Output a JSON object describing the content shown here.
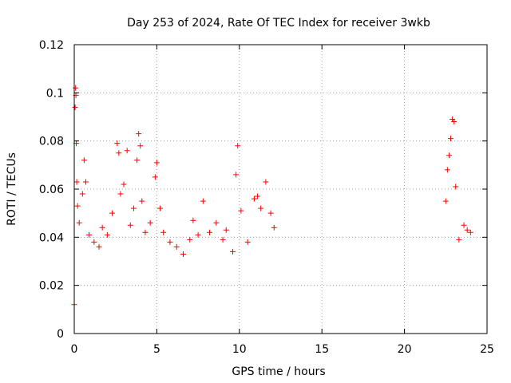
{
  "chart_data": {
    "type": "scatter",
    "title": "Day 253 of 2024, Rate Of TEC Index for receiver 3wkb",
    "xlabel": "GPS time / hours",
    "ylabel": "ROTI / TECUs",
    "xlim": [
      0,
      25
    ],
    "ylim": [
      0,
      0.12
    ],
    "xticks": [
      "0",
      "5",
      "10",
      "15",
      "20",
      "25"
    ],
    "yticks": [
      "0",
      "0.02",
      "0.04",
      "0.06",
      "0.08",
      "0.1",
      "0.12"
    ],
    "grid": true,
    "marker": "+",
    "series_color": "#ff0000",
    "series": [
      {
        "points": [
          [
            0.0,
            0.012
          ],
          [
            0.05,
            0.094
          ],
          [
            0.08,
            0.102
          ],
          [
            0.1,
            0.099
          ],
          [
            0.12,
            0.079
          ],
          [
            0.15,
            0.063
          ],
          [
            0.2,
            0.053
          ],
          [
            0.3,
            0.046
          ],
          [
            0.5,
            0.058
          ],
          [
            0.6,
            0.072
          ],
          [
            0.7,
            0.063
          ],
          [
            0.9,
            0.041
          ],
          [
            1.2,
            0.038
          ],
          [
            1.5,
            0.036
          ],
          [
            1.7,
            0.044
          ],
          [
            2.0,
            0.041
          ],
          [
            2.3,
            0.05
          ],
          [
            2.6,
            0.079
          ],
          [
            2.7,
            0.075
          ],
          [
            2.8,
            0.058
          ],
          [
            3.0,
            0.062
          ],
          [
            3.2,
            0.076
          ],
          [
            3.4,
            0.045
          ],
          [
            3.6,
            0.052
          ],
          [
            3.8,
            0.072
          ],
          [
            3.9,
            0.083
          ],
          [
            4.0,
            0.078
          ],
          [
            4.1,
            0.055
          ],
          [
            4.3,
            0.042
          ],
          [
            4.6,
            0.046
          ],
          [
            4.9,
            0.065
          ],
          [
            5.0,
            0.071
          ],
          [
            5.2,
            0.052
          ],
          [
            5.4,
            0.042
          ],
          [
            5.8,
            0.038
          ],
          [
            6.2,
            0.036
          ],
          [
            6.6,
            0.033
          ],
          [
            7.0,
            0.039
          ],
          [
            7.2,
            0.047
          ],
          [
            7.5,
            0.041
          ],
          [
            7.8,
            0.055
          ],
          [
            8.2,
            0.042
          ],
          [
            8.6,
            0.046
          ],
          [
            9.0,
            0.039
          ],
          [
            9.2,
            0.043
          ],
          [
            9.6,
            0.034
          ],
          [
            9.8,
            0.066
          ],
          [
            9.9,
            0.078
          ],
          [
            10.1,
            0.051
          ],
          [
            10.5,
            0.038
          ],
          [
            10.9,
            0.056
          ],
          [
            11.1,
            0.057
          ],
          [
            11.3,
            0.052
          ],
          [
            11.6,
            0.063
          ],
          [
            11.9,
            0.05
          ],
          [
            12.1,
            0.044
          ],
          [
            22.5,
            0.055
          ],
          [
            22.6,
            0.068
          ],
          [
            22.7,
            0.074
          ],
          [
            22.8,
            0.081
          ],
          [
            22.9,
            0.089
          ],
          [
            23.0,
            0.088
          ],
          [
            23.1,
            0.061
          ],
          [
            23.3,
            0.039
          ],
          [
            23.6,
            0.045
          ],
          [
            23.8,
            0.043
          ],
          [
            24.0,
            0.042
          ]
        ]
      }
    ]
  }
}
